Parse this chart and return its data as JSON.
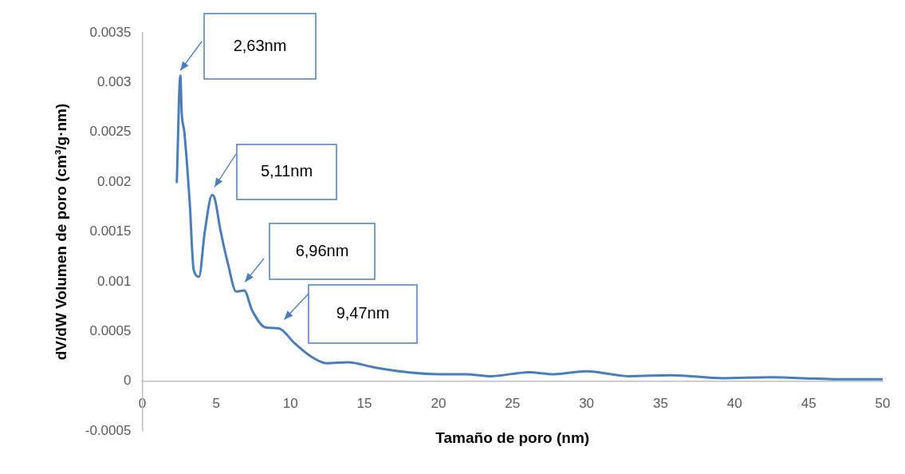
{
  "chart_data": {
    "type": "line",
    "xlabel": "Tamaño de poro (nm)",
    "ylabel": "dV/dW Volumen de poro (cm³/g·nm)",
    "xlim": [
      0,
      50
    ],
    "xticks": [
      0,
      5,
      10,
      15,
      20,
      25,
      30,
      35,
      40,
      45,
      50
    ],
    "ylim": [
      -0.0005,
      0.0035
    ],
    "yticks": [
      -0.0005,
      0,
      0.0005,
      0.001,
      0.0015,
      0.002,
      0.0025,
      0.003,
      0.0035
    ],
    "grid": false,
    "legend": false,
    "marker": "none",
    "line_style": "solid",
    "series": [
      {
        "color": "#4a7ebb",
        "x": [
          2.33,
          2.57,
          2.66,
          2.84,
          3.2,
          3.47,
          3.83,
          4.22,
          4.72,
          4.9,
          5.26,
          5.8,
          6.34,
          6.88,
          7.42,
          8.31,
          9.21,
          10.29,
          11.37,
          12.45,
          13.9,
          15.6,
          17.9,
          20.1,
          21.8,
          23.6,
          26.1,
          27.8,
          30.0,
          32.8,
          35.7,
          39.2,
          42.4,
          46.7,
          50
        ],
        "values": [
          0.002,
          0.00307,
          0.0027,
          0.0025,
          0.0018,
          0.00112,
          0.00105,
          0.0015,
          0.00187,
          0.00183,
          0.00153,
          0.00117,
          0.0009,
          0.00091,
          0.00071,
          0.00054,
          0.00053,
          0.00038,
          0.00025,
          0.00018,
          0.00019,
          0.00014,
          9e-05,
          7e-05,
          7e-05,
          5e-05,
          9e-05,
          7e-05,
          0.0001,
          5e-05,
          6e-05,
          3e-05,
          4e-05,
          2e-05,
          2e-05
        ]
      }
    ],
    "annotations": [
      "2,63nm",
      "5,11nm",
      "6,96nm",
      "9,47nm"
    ]
  }
}
